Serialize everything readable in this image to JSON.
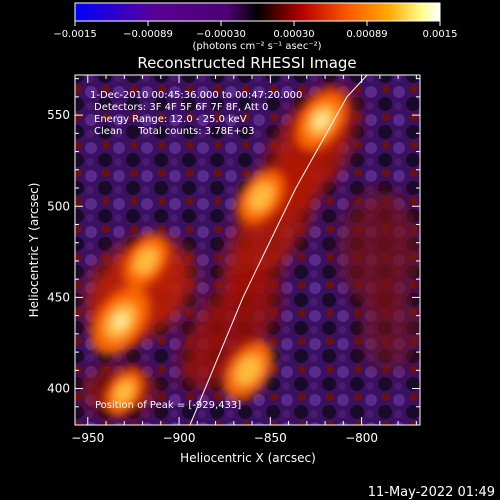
{
  "colorbar": {
    "ticks": [
      "−0.0015",
      "−0.00089",
      "−0.00030",
      "0.00030",
      "0.00089",
      "0.0015"
    ],
    "unit_label": "(photons cm⁻² s⁻¹ asec⁻²)",
    "colors": [
      "#0000ff",
      "#5a0096",
      "#4b0070",
      "#000000",
      "#b40000",
      "#ff5a00",
      "#ffaa00",
      "#ffff8c",
      "#ffffff"
    ]
  },
  "chart_data": {
    "type": "heatmap",
    "title": "Reconstructed RHESSI Image",
    "xlabel": "Heliocentric X (arcsec)",
    "ylabel": "Heliocentric Y (arcsec)",
    "xlim": [
      -957,
      -768
    ],
    "ylim": [
      380,
      572
    ],
    "x_ticks": [
      -950,
      -900,
      -850,
      -800
    ],
    "y_ticks": [
      400,
      450,
      500,
      550
    ],
    "x_tick_labels": [
      "−950",
      "−900",
      "−850",
      "−800"
    ],
    "y_tick_labels": [
      "400",
      "450",
      "500",
      "550"
    ],
    "value_range": [
      -0.0015,
      0.0015
    ],
    "limb_line": [
      [
        -894,
        380
      ],
      [
        -865,
        450
      ],
      [
        -836,
        510
      ],
      [
        -808,
        560
      ],
      [
        -797,
        572
      ]
    ],
    "bright_regions": [
      {
        "x": -932,
        "y": 437,
        "relative_intensity": 1.0
      },
      {
        "x": -918,
        "y": 470,
        "relative_intensity": 0.7
      },
      {
        "x": -855,
        "y": 505,
        "relative_intensity": 0.75
      },
      {
        "x": -822,
        "y": 547,
        "relative_intensity": 0.85
      },
      {
        "x": -862,
        "y": 410,
        "relative_intensity": 0.8
      },
      {
        "x": -930,
        "y": 398,
        "relative_intensity": 0.55
      }
    ],
    "annotations": [
      "1-Dec-2010 00:45:36.000 to 00:47:20.000",
      "Detectors: 3F 4F 5F 6F 7F 8F, Att 0",
      "Energy Range: 12.0 - 25.0 keV",
      "Clean     Total counts: 3.78E+03"
    ],
    "peak_label": "Position of Peak = [-929,433]"
  },
  "footer": {
    "timestamp": "11-May-2022 01:49"
  }
}
